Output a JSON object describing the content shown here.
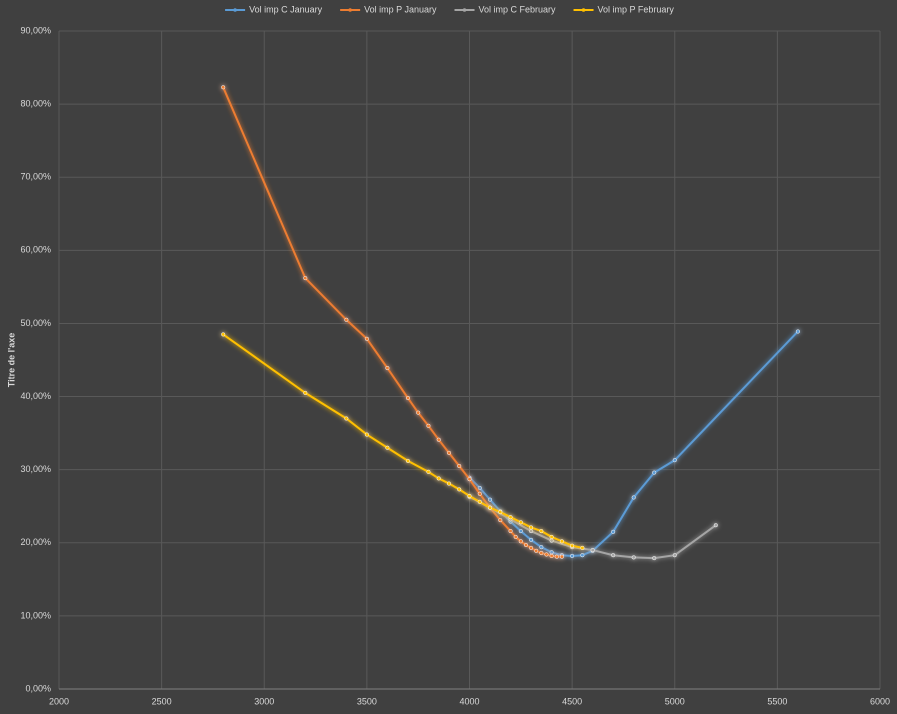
{
  "chart_data": {
    "type": "line",
    "y_axis_label": "Titre de l'axe",
    "xlim": [
      2000,
      6000
    ],
    "xticks": [
      2000,
      2500,
      3000,
      3500,
      4000,
      4500,
      5000,
      5500,
      6000
    ],
    "ylim": [
      0,
      90
    ],
    "yticks": [
      {
        "value": 0,
        "label": "0,00%"
      },
      {
        "value": 10,
        "label": "10,00%"
      },
      {
        "value": 20,
        "label": "20,00%"
      },
      {
        "value": 30,
        "label": "30,00%"
      },
      {
        "value": 40,
        "label": "40,00%"
      },
      {
        "value": 50,
        "label": "50,00%"
      },
      {
        "value": 60,
        "label": "60,00%"
      },
      {
        "value": 70,
        "label": "70,00%"
      },
      {
        "value": 80,
        "label": "80,00%"
      },
      {
        "value": 90,
        "label": "90,00%"
      }
    ],
    "grid": true,
    "legend": "top",
    "series": [
      {
        "name": "Vol imp C January",
        "color": "#5b9bd5",
        "x": [
          4000,
          4050,
          4100,
          4150,
          4200,
          4250,
          4300,
          4350,
          4400,
          4450,
          4500,
          4550,
          4600,
          4700,
          4800,
          4900,
          5000,
          5600
        ],
        "values": [
          28.9,
          27.5,
          25.9,
          24.3,
          22.9,
          21.6,
          20.4,
          19.4,
          18.7,
          18.3,
          18.2,
          18.3,
          18.9,
          21.5,
          26.2,
          29.6,
          31.3,
          48.9
        ]
      },
      {
        "name": "Vol imp P January",
        "color": "#ed7d31",
        "x": [
          2800,
          3200,
          3400,
          3500,
          3600,
          3700,
          3750,
          3800,
          3850,
          3900,
          3950,
          4000,
          4050,
          4100,
          4150,
          4200,
          4225,
          4250,
          4275,
          4300,
          4325,
          4350,
          4375,
          4400,
          4425,
          4450
        ],
        "values": [
          82.3,
          56.2,
          50.5,
          47.9,
          43.9,
          39.8,
          37.8,
          36.0,
          34.1,
          32.3,
          30.5,
          28.7,
          26.7,
          24.8,
          23.1,
          21.6,
          20.8,
          20.2,
          19.7,
          19.3,
          18.9,
          18.6,
          18.4,
          18.2,
          18.1,
          18.1
        ]
      },
      {
        "name": "Vol imp C February",
        "color": "#a5a5a5",
        "x": [
          4000,
          4100,
          4200,
          4300,
          4400,
          4500,
          4600,
          4700,
          4800,
          4900,
          5000,
          5200
        ],
        "values": [
          26.3,
          24.8,
          23.2,
          21.6,
          20.3,
          19.4,
          19.0,
          18.3,
          18.0,
          17.9,
          18.3,
          22.4
        ]
      },
      {
        "name": "Vol imp P February",
        "color": "#ffc000",
        "x": [
          2800,
          3200,
          3400,
          3500,
          3600,
          3700,
          3800,
          3850,
          3900,
          3950,
          4000,
          4050,
          4100,
          4150,
          4200,
          4250,
          4300,
          4350,
          4400,
          4450,
          4500,
          4550
        ],
        "values": [
          48.5,
          40.5,
          37.0,
          34.8,
          33.0,
          31.2,
          29.7,
          28.8,
          28.1,
          27.3,
          26.4,
          25.6,
          24.8,
          24.2,
          23.5,
          22.8,
          22.1,
          21.6,
          20.8,
          20.2,
          19.6,
          19.3
        ]
      }
    ]
  }
}
